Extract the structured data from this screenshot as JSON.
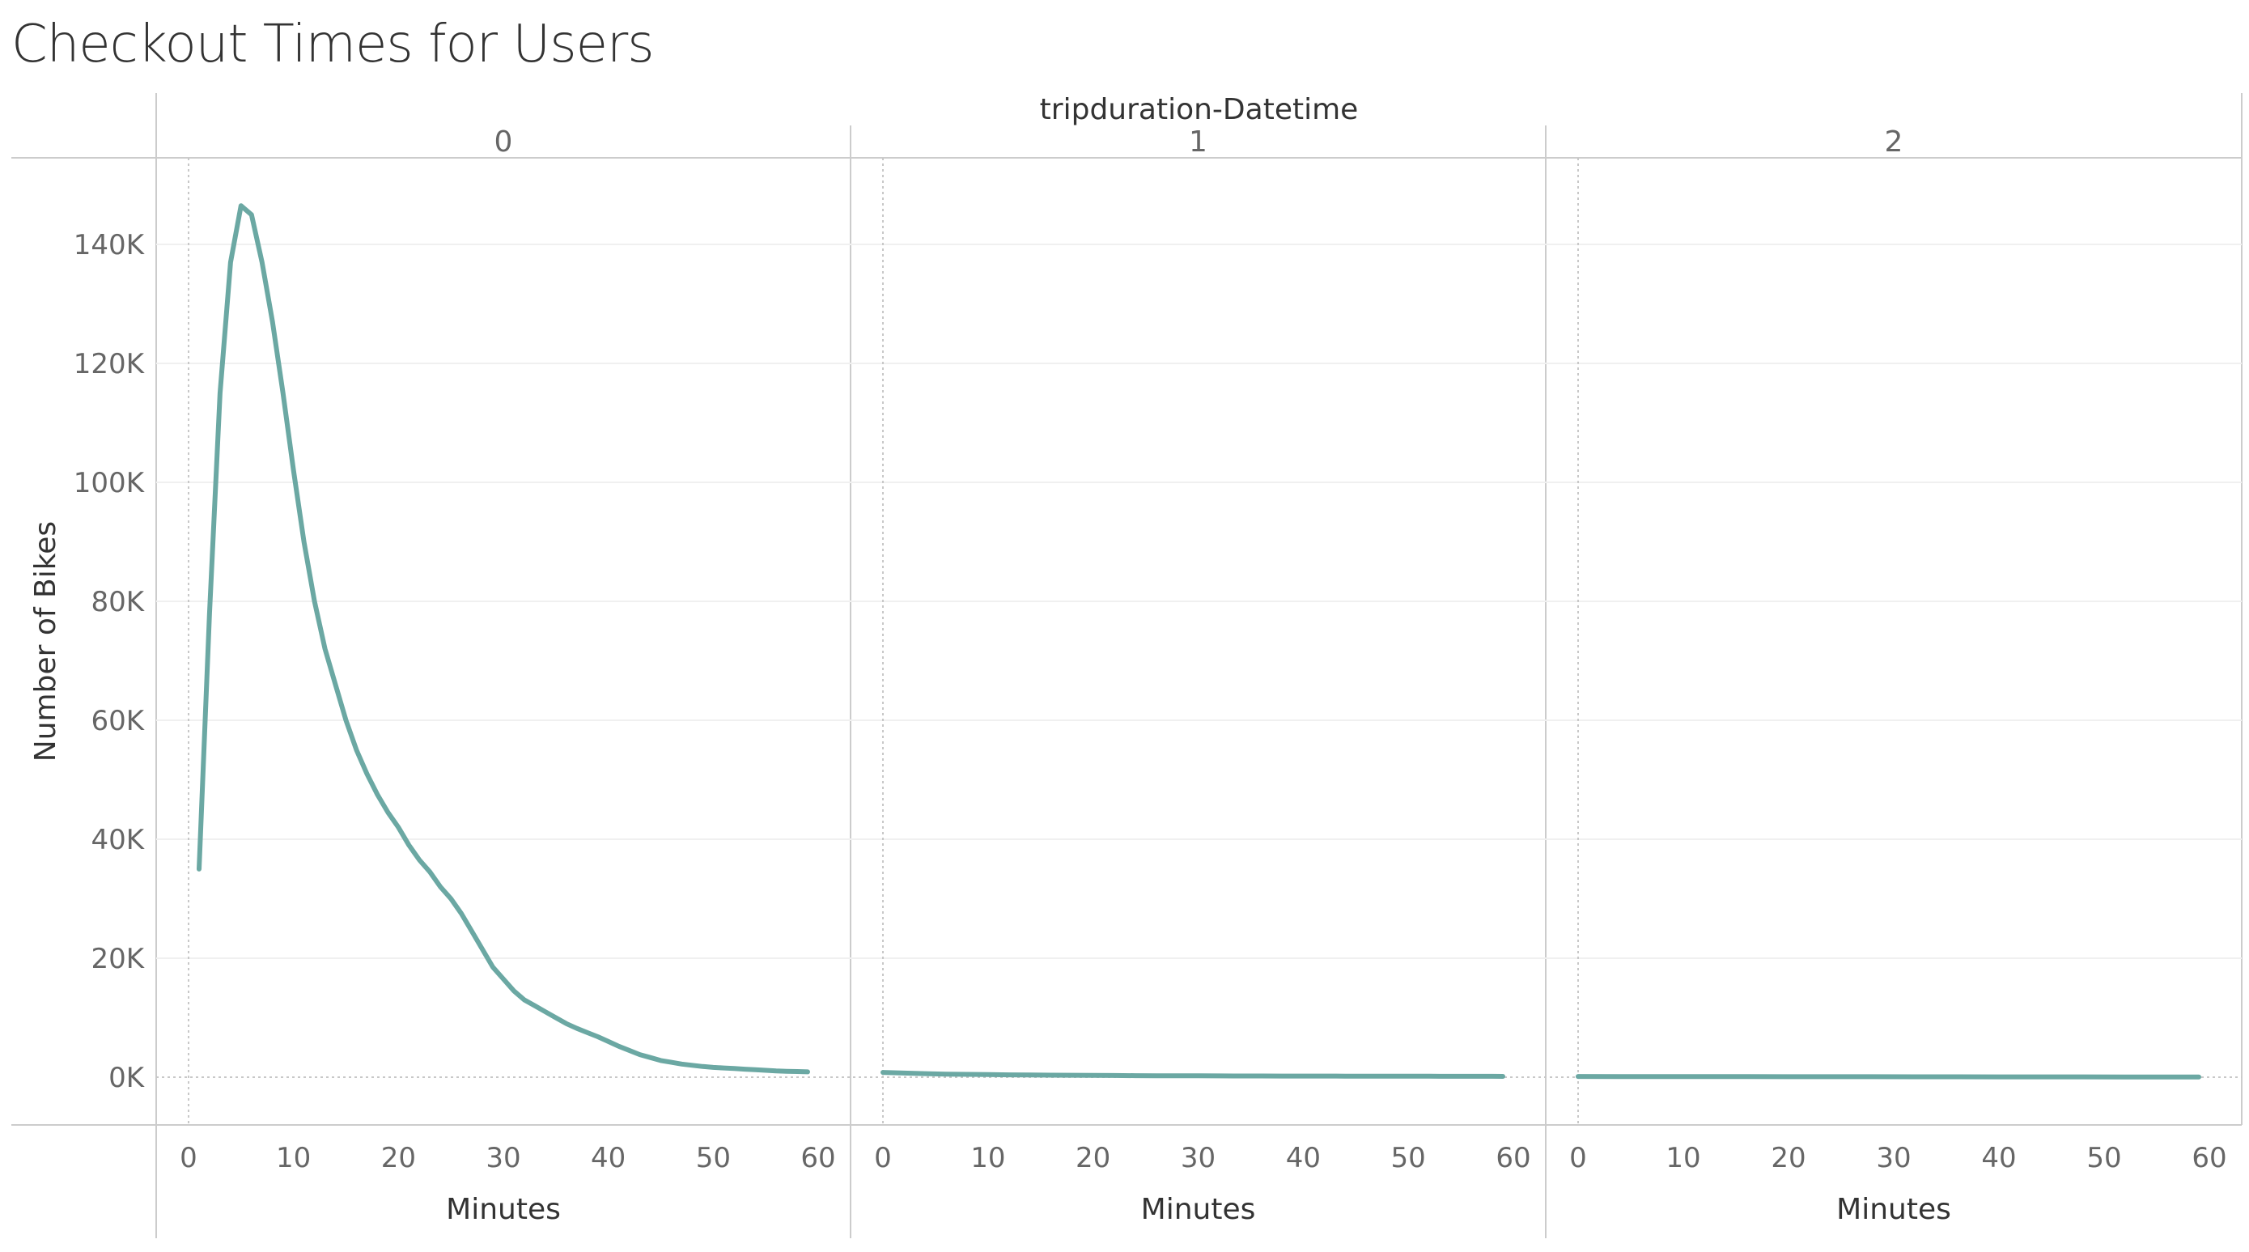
{
  "title": "Checkout Times for Users",
  "chart_data": {
    "type": "line",
    "title": "Checkout Times for Users",
    "column_header": "tripduration-Datetime",
    "xlabel": "Minutes",
    "ylabel": "Number of Bikes",
    "xlim": [
      0,
      60
    ],
    "ylim": [
      0,
      150000
    ],
    "x_ticks": [
      0,
      10,
      20,
      30,
      40,
      50,
      60
    ],
    "y_ticks": [
      0,
      20000,
      40000,
      60000,
      80000,
      100000,
      120000,
      140000
    ],
    "y_tick_labels": [
      "0K",
      "20K",
      "40K",
      "60K",
      "80K",
      "100K",
      "120K",
      "140K"
    ],
    "grid": true,
    "line_color": "#6ba8a3",
    "panes": [
      {
        "label": "0",
        "x": [
          1,
          2,
          3,
          4,
          5,
          6,
          7,
          8,
          9,
          10,
          11,
          12,
          13,
          14,
          15,
          16,
          17,
          18,
          19,
          20,
          21,
          22,
          23,
          24,
          25,
          26,
          27,
          28,
          29,
          30,
          31,
          32,
          33,
          34,
          35,
          36,
          37,
          38,
          39,
          40,
          41,
          42,
          43,
          44,
          45,
          46,
          47,
          48,
          49,
          50,
          51,
          52,
          53,
          54,
          55,
          56,
          57,
          58,
          59
        ],
        "y": [
          35000,
          78000,
          115000,
          137000,
          146500,
          145000,
          137000,
          127000,
          115000,
          102000,
          90000,
          80000,
          72000,
          66000,
          60000,
          55000,
          51000,
          47500,
          44500,
          42000,
          39000,
          36500,
          34500,
          32000,
          30000,
          27500,
          24500,
          21500,
          18500,
          16500,
          14500,
          13000,
          12000,
          11000,
          10000,
          9000,
          8200,
          7500,
          6800,
          6000,
          5200,
          4500,
          3800,
          3300,
          2800,
          2500,
          2200,
          2000,
          1800,
          1650,
          1550,
          1450,
          1350,
          1250,
          1150,
          1050,
          1000,
          950,
          900
        ]
      },
      {
        "label": "1",
        "x": [
          0,
          2,
          4,
          6,
          8,
          10,
          12,
          14,
          16,
          18,
          20,
          22,
          24,
          26,
          28,
          30,
          32,
          34,
          36,
          38,
          40,
          42,
          44,
          46,
          48,
          50,
          52,
          54,
          56,
          58,
          59
        ],
        "y": [
          800,
          700,
          600,
          520,
          470,
          430,
          400,
          370,
          340,
          320,
          300,
          280,
          265,
          250,
          240,
          230,
          220,
          210,
          200,
          195,
          190,
          185,
          180,
          175,
          170,
          165,
          160,
          155,
          150,
          145,
          140
        ]
      },
      {
        "label": "2",
        "x": [
          0,
          4,
          8,
          12,
          16,
          20,
          24,
          28,
          32,
          36,
          40,
          44,
          48,
          52,
          56,
          59
        ],
        "y": [
          120,
          110,
          100,
          95,
          90,
          85,
          80,
          75,
          70,
          65,
          60,
          55,
          50,
          45,
          40,
          38
        ]
      }
    ]
  }
}
